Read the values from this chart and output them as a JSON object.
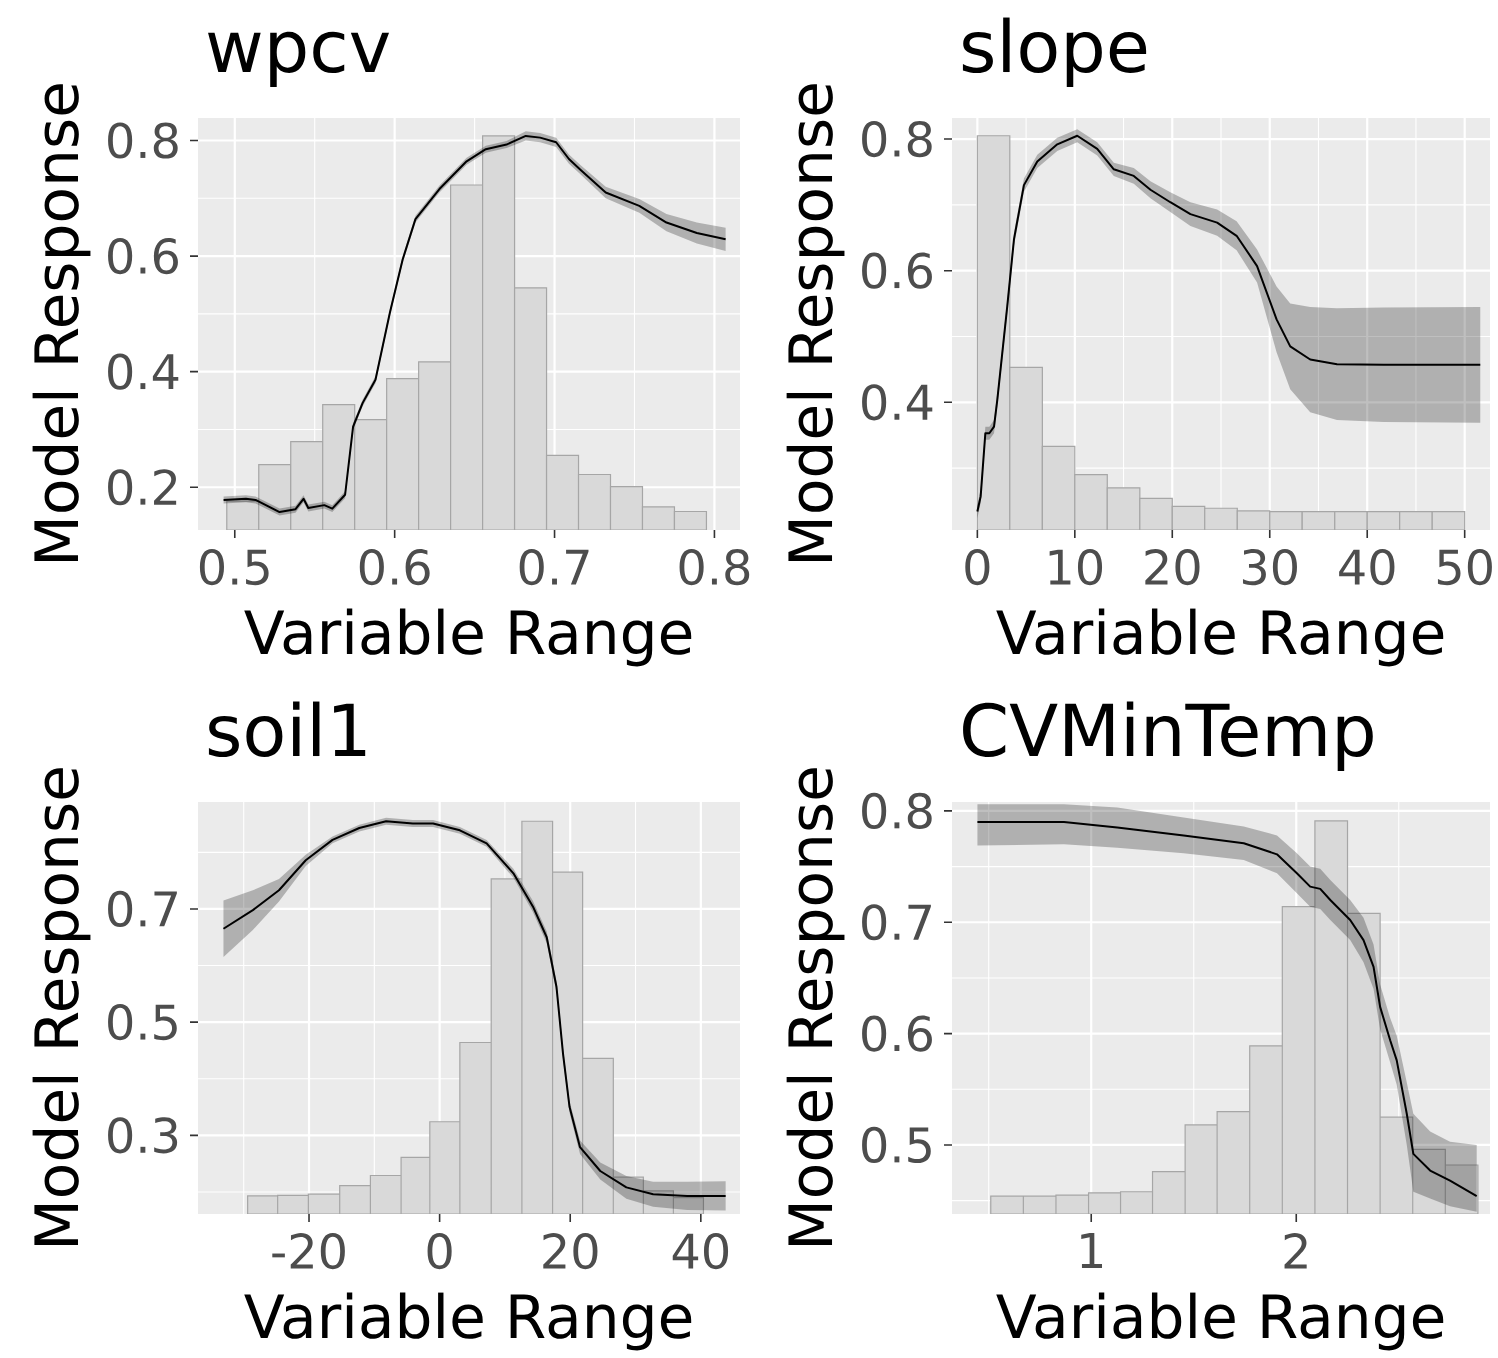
{
  "chart_data": [
    {
      "type": "histogram",
      "title": "wpcv",
      "xlabel": "Variable Range",
      "ylabel": "Model Response",
      "xlim": [
        0.477,
        0.816
      ],
      "ylim": [
        0.126,
        0.839
      ],
      "xticks": [
        0.5,
        0.6,
        0.7,
        0.8
      ],
      "yticks": [
        0.2,
        0.4,
        0.6,
        0.8
      ],
      "grid": true,
      "series": [
        {
          "color": "#d9d9d9",
          "bins": [
            0.495,
            0.515,
            0.535,
            0.555,
            0.575,
            0.595,
            0.615,
            0.635,
            0.655,
            0.675,
            0.695,
            0.715,
            0.735,
            0.755,
            0.775,
            0.795
          ],
          "values": [
            0.176,
            0.239,
            0.279,
            0.343,
            0.317,
            0.388,
            0.417,
            0.723,
            0.808,
            0.545,
            0.255,
            0.222,
            0.201,
            0.166,
            0.158
          ]
        },
        {
          "type": "line",
          "color": "#000000",
          "x": [
            0.493,
            0.507,
            0.513,
            0.528,
            0.538,
            0.543,
            0.546,
            0.556,
            0.561,
            0.569,
            0.574,
            0.58,
            0.588,
            0.597,
            0.605,
            0.613,
            0.628,
            0.645,
            0.657,
            0.67,
            0.682,
            0.691,
            0.701,
            0.709,
            0.716,
            0.732,
            0.753,
            0.77,
            0.789,
            0.807
          ],
          "values": [
            0.178,
            0.18,
            0.178,
            0.157,
            0.162,
            0.18,
            0.164,
            0.169,
            0.163,
            0.187,
            0.305,
            0.346,
            0.386,
            0.502,
            0.594,
            0.664,
            0.716,
            0.764,
            0.785,
            0.793,
            0.808,
            0.805,
            0.797,
            0.768,
            0.75,
            0.71,
            0.687,
            0.658,
            0.64,
            0.629
          ],
          "lower": [
            0.172,
            0.174,
            0.172,
            0.151,
            0.156,
            0.174,
            0.158,
            0.163,
            0.157,
            0.181,
            0.299,
            0.34,
            0.38,
            0.496,
            0.588,
            0.658,
            0.71,
            0.758,
            0.779,
            0.787,
            0.8,
            0.797,
            0.789,
            0.76,
            0.742,
            0.7,
            0.675,
            0.643,
            0.622,
            0.609
          ],
          "upper": [
            0.184,
            0.186,
            0.184,
            0.163,
            0.168,
            0.186,
            0.17,
            0.175,
            0.169,
            0.193,
            0.311,
            0.352,
            0.392,
            0.508,
            0.6,
            0.67,
            0.722,
            0.77,
            0.791,
            0.799,
            0.816,
            0.813,
            0.805,
            0.776,
            0.758,
            0.72,
            0.699,
            0.673,
            0.658,
            0.649
          ]
        }
      ]
    },
    {
      "type": "histogram",
      "title": "slope",
      "xlabel": "Variable Range",
      "ylabel": "Model Response",
      "xlim": [
        -2.6,
        52.6
      ],
      "ylim": [
        0.206,
        0.832
      ],
      "xticks": [
        0,
        10,
        20,
        30,
        40,
        50
      ],
      "yticks": [
        0.4,
        0.6,
        0.8
      ],
      "grid": true,
      "series": [
        {
          "color": "#d9d9d9",
          "bins": [
            0,
            3.33,
            6.67,
            10,
            13.33,
            16.67,
            20,
            23.33,
            26.67,
            30,
            33.33,
            36.67,
            40,
            43.33,
            46.67,
            50
          ],
          "values": [
            0.805,
            0.453,
            0.333,
            0.29,
            0.27,
            0.254,
            0.242,
            0.239,
            0.235,
            0.234,
            0.234,
            0.234,
            0.234,
            0.234,
            0.234
          ]
        },
        {
          "type": "line",
          "color": "#000000",
          "x": [
            0,
            0.34,
            0.82,
            1.23,
            1.71,
            2.05,
            3.07,
            3.76,
            4.78,
            6.15,
            8.2,
            10.25,
            12.3,
            14.0,
            16.05,
            17.76,
            19.8,
            21.86,
            24.6,
            26.6,
            28.7,
            30.7,
            32.1,
            34.15,
            36.9,
            41.7,
            51.6
          ],
          "values": [
            0.234,
            0.257,
            0.353,
            0.353,
            0.363,
            0.404,
            0.546,
            0.648,
            0.73,
            0.766,
            0.792,
            0.805,
            0.785,
            0.754,
            0.744,
            0.723,
            0.704,
            0.686,
            0.673,
            0.653,
            0.607,
            0.526,
            0.485,
            0.465,
            0.458,
            0.457,
            0.457
          ],
          "lower": [
            0.224,
            0.247,
            0.343,
            0.343,
            0.353,
            0.394,
            0.536,
            0.638,
            0.72,
            0.756,
            0.782,
            0.795,
            0.775,
            0.744,
            0.732,
            0.71,
            0.689,
            0.668,
            0.653,
            0.631,
            0.582,
            0.476,
            0.42,
            0.385,
            0.373,
            0.37,
            0.369
          ],
          "upper": [
            0.244,
            0.267,
            0.363,
            0.363,
            0.373,
            0.414,
            0.556,
            0.658,
            0.74,
            0.776,
            0.802,
            0.815,
            0.795,
            0.764,
            0.756,
            0.736,
            0.719,
            0.704,
            0.693,
            0.675,
            0.632,
            0.576,
            0.55,
            0.545,
            0.543,
            0.544,
            0.545
          ]
        }
      ]
    },
    {
      "type": "histogram",
      "title": "soil1",
      "xlabel": "Variable Range",
      "ylabel": "Model Response",
      "xlim": [
        -37,
        46
      ],
      "ylim": [
        0.161,
        0.889
      ],
      "xticks": [
        -20,
        0,
        20,
        40
      ],
      "yticks": [
        0.3,
        0.5,
        0.7
      ],
      "grid": true,
      "series": [
        {
          "color": "#d9d9d9",
          "bins": [
            -29.4,
            -24.8,
            -20.1,
            -15.3,
            -10.6,
            -5.9,
            -1.5,
            3.1,
            7.9,
            12.6,
            17.3,
            21.9,
            26.6,
            31.2,
            35.8,
            40.4
          ],
          "values": [
            0.193,
            0.194,
            0.196,
            0.211,
            0.229,
            0.261,
            0.324,
            0.464,
            0.753,
            0.855,
            0.765,
            0.436,
            0.226,
            0.202,
            0.19
          ]
        },
        {
          "type": "line",
          "color": "#000000",
          "x": [
            -33.1,
            -28.6,
            -24.6,
            -20.5,
            -16.4,
            -12.3,
            -8.2,
            -4.1,
            -1.0,
            3.1,
            7.2,
            11.3,
            14.3,
            16.4,
            17.9,
            18.9,
            19.9,
            21.5,
            24.6,
            28.6,
            32.7,
            37.9,
            43.8
          ],
          "values": [
            0.665,
            0.698,
            0.733,
            0.786,
            0.822,
            0.843,
            0.855,
            0.851,
            0.851,
            0.839,
            0.816,
            0.763,
            0.704,
            0.65,
            0.562,
            0.444,
            0.35,
            0.279,
            0.237,
            0.208,
            0.196,
            0.193,
            0.193
          ],
          "lower": [
            0.615,
            0.663,
            0.713,
            0.776,
            0.816,
            0.837,
            0.849,
            0.845,
            0.845,
            0.833,
            0.81,
            0.755,
            0.694,
            0.64,
            0.552,
            0.434,
            0.34,
            0.267,
            0.222,
            0.188,
            0.174,
            0.168,
            0.167
          ],
          "upper": [
            0.715,
            0.733,
            0.753,
            0.796,
            0.828,
            0.849,
            0.861,
            0.857,
            0.857,
            0.845,
            0.822,
            0.771,
            0.714,
            0.66,
            0.572,
            0.454,
            0.36,
            0.291,
            0.252,
            0.228,
            0.218,
            0.218,
            0.219
          ]
        }
      ]
    },
    {
      "type": "histogram",
      "title": "CVMinTemp",
      "xlabel": "Variable Range",
      "ylabel": "Model Response",
      "xlim": [
        0.321,
        2.945
      ],
      "ylim": [
        0.438,
        0.808
      ],
      "xticks": [
        1,
        2
      ],
      "yticks": [
        0.5,
        0.6,
        0.7,
        0.8
      ],
      "grid": true,
      "series": [
        {
          "color": "#d9d9d9",
          "bins": [
            0.51,
            0.669,
            0.828,
            0.987,
            1.143,
            1.299,
            1.458,
            1.614,
            1.773,
            1.932,
            2.091,
            2.25,
            2.409,
            2.568,
            2.727,
            2.886
          ],
          "values": [
            0.454,
            0.454,
            0.455,
            0.457,
            0.458,
            0.476,
            0.518,
            0.53,
            0.589,
            0.714,
            0.791,
            0.708,
            0.525,
            0.496,
            0.482
          ]
        },
        {
          "type": "line",
          "color": "#000000",
          "x": [
            0.445,
            0.867,
            1.127,
            1.451,
            1.744,
            1.906,
            2.003,
            2.068,
            2.117,
            2.166,
            2.263,
            2.328,
            2.377,
            2.409,
            2.458,
            2.49,
            2.539,
            2.571,
            2.653,
            2.75,
            2.88
          ],
          "values": [
            0.79,
            0.79,
            0.785,
            0.778,
            0.771,
            0.761,
            0.744,
            0.732,
            0.73,
            0.72,
            0.702,
            0.684,
            0.66,
            0.624,
            0.594,
            0.576,
            0.528,
            0.492,
            0.477,
            0.468,
            0.454
          ],
          "lower": [
            0.769,
            0.77,
            0.767,
            0.762,
            0.756,
            0.744,
            0.726,
            0.714,
            0.712,
            0.702,
            0.684,
            0.664,
            0.64,
            0.604,
            0.574,
            0.554,
            0.5,
            0.458,
            0.452,
            0.445,
            0.44
          ],
          "upper": [
            0.806,
            0.806,
            0.803,
            0.794,
            0.786,
            0.778,
            0.762,
            0.75,
            0.748,
            0.738,
            0.72,
            0.704,
            0.68,
            0.644,
            0.614,
            0.598,
            0.556,
            0.528,
            0.512,
            0.503,
            0.5
          ]
        }
      ]
    }
  ]
}
